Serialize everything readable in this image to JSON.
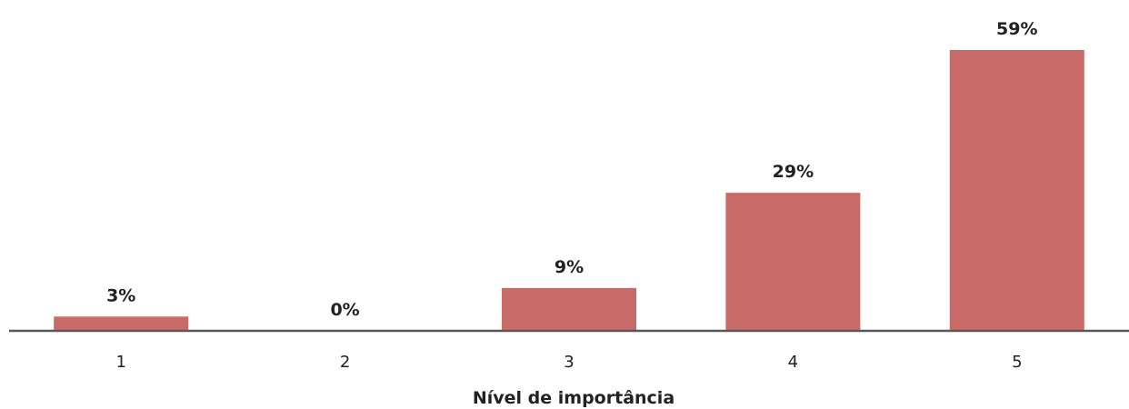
{
  "chart_data": {
    "type": "bar",
    "title": "",
    "xlabel": "Nível de importância",
    "ylabel": "",
    "categories": [
      "1",
      "2",
      "3",
      "4",
      "5"
    ],
    "values": [
      3,
      0,
      9,
      29,
      59
    ],
    "data_labels": [
      "3%",
      "0%",
      "9%",
      "29%",
      "59%"
    ],
    "unit": "%",
    "ylim": [
      0,
      59
    ],
    "grid": false,
    "legend": "none",
    "bar_color": "#C86A68",
    "axis_color": "#595959"
  }
}
